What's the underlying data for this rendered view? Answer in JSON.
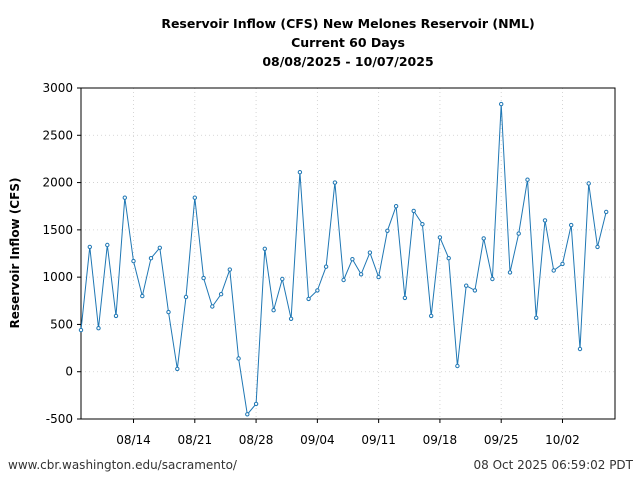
{
  "chart_data": {
    "type": "line",
    "title": [
      "Reservoir Inflow (CFS) New Melones Reservoir (NML)",
      "Current 60 Days",
      "08/08/2025 - 10/07/2025"
    ],
    "xlabel": "",
    "ylabel": "Reservoir Inflow (CFS)",
    "x_start": "2025-08-08",
    "xlim": [
      "2025-08-08",
      "2025-10-08"
    ],
    "ylim": [
      -500,
      3000
    ],
    "yticks": [
      -500,
      0,
      500,
      1000,
      1500,
      2000,
      2500,
      3000
    ],
    "xticks": [
      {
        "date": "2025-08-14",
        "label": "08/14"
      },
      {
        "date": "2025-08-21",
        "label": "08/21"
      },
      {
        "date": "2025-08-28",
        "label": "08/28"
      },
      {
        "date": "2025-09-04",
        "label": "09/04"
      },
      {
        "date": "2025-09-11",
        "label": "09/11"
      },
      {
        "date": "2025-09-18",
        "label": "09/18"
      },
      {
        "date": "2025-09-25",
        "label": "09/25"
      },
      {
        "date": "2025-10-02",
        "label": "10/02"
      }
    ],
    "grid": true,
    "series": [
      {
        "color": "#1f77b4",
        "values": [
          440,
          1320,
          460,
          1340,
          590,
          1840,
          1170,
          800,
          1200,
          1310,
          630,
          30,
          790,
          1840,
          990,
          690,
          820,
          1080,
          140,
          -450,
          -340,
          1300,
          650,
          980,
          560,
          2110,
          770,
          860,
          1110,
          2000,
          970,
          1190,
          1030,
          1260,
          1000,
          1490,
          1750,
          780,
          1700,
          1560,
          590,
          1420,
          1200,
          60,
          910,
          860,
          1410,
          980,
          2830,
          1050,
          1460,
          2030,
          570,
          1600,
          1070,
          1140,
          1550,
          240,
          1990,
          1320,
          1690
        ]
      }
    ]
  },
  "footer": {
    "source": "www.cbr.washington.edu/sacramento/",
    "timestamp": "08 Oct 2025 06:59:02 PDT"
  }
}
